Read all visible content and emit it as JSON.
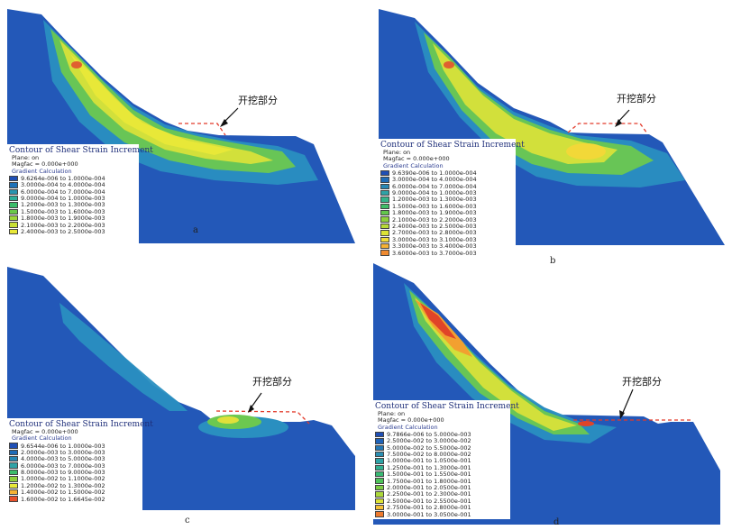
{
  "panels": [
    {
      "id": "a",
      "label": "a",
      "excavation_label": "开挖部分",
      "legend": {
        "title": "Contour of Shear Strain Increment",
        "plane": "Plane: on",
        "magfac": "Magfac =  0.000e+000",
        "subtitle": "Gradient Calculation",
        "entries": [
          {
            "range": "9.6264e-006 to  1.0000e-004",
            "color": "#1f4fb5"
          },
          {
            "range": "3.0000e-004 to  4.0000e-004",
            "color": "#1f72b8"
          },
          {
            "range": "6.0000e-004 to  7.0000e-004",
            "color": "#2a94b0"
          },
          {
            "range": "9.0000e-004 to  1.0000e-003",
            "color": "#2fae9a"
          },
          {
            "range": "1.2000e-003 to  1.3000e-003",
            "color": "#3cbc6a"
          },
          {
            "range": "1.5000e-003 to  1.6000e-003",
            "color": "#6ac84a"
          },
          {
            "range": "1.8000e-003 to  1.9000e-003",
            "color": "#9ed63a"
          },
          {
            "range": "2.1000e-003 to  2.2000e-003",
            "color": "#c9e036"
          },
          {
            "range": "2.4000e-003 to  2.5000e-003",
            "color": "#e8e838"
          }
        ]
      }
    },
    {
      "id": "b",
      "label": "b",
      "excavation_label": "开挖部分",
      "legend": {
        "title": "Contour of Shear Strain Increment",
        "plane": "Plane: on",
        "magfac": "Magfac =  0.000e+000",
        "subtitle": "Gradient Calculation",
        "entries": [
          {
            "range": "9.6390e-006 to  1.0000e-004",
            "color": "#1f4fb5"
          },
          {
            "range": "3.0000e-004 to  4.0000e-004",
            "color": "#1f6cb8"
          },
          {
            "range": "6.0000e-004 to  7.0000e-004",
            "color": "#2888b4"
          },
          {
            "range": "9.0000e-004 to  1.0000e-003",
            "color": "#2ea2a6"
          },
          {
            "range": "1.2000e-003 to  1.3000e-003",
            "color": "#33b48a"
          },
          {
            "range": "1.5000e-003 to  1.6000e-003",
            "color": "#3fbe68"
          },
          {
            "range": "1.8000e-003 to  1.9000e-003",
            "color": "#62c64c"
          },
          {
            "range": "2.1000e-003 to  2.2000e-003",
            "color": "#8ed03c"
          },
          {
            "range": "2.4000e-003 to  2.5000e-003",
            "color": "#b8da36"
          },
          {
            "range": "2.7000e-003 to  2.8000e-003",
            "color": "#dce236"
          },
          {
            "range": "3.0000e-003 to  3.1000e-003",
            "color": "#f2dc38"
          },
          {
            "range": "3.3000e-003 to  3.4000e-003",
            "color": "#f5b234"
          },
          {
            "range": "3.6000e-003 to  3.7000e-003",
            "color": "#ef8a30"
          }
        ]
      }
    },
    {
      "id": "c",
      "label": "c",
      "excavation_label": "开挖部分",
      "legend": {
        "title": "Contour of Shear Strain Increment",
        "plane": "Plane: on",
        "magfac": "Magfac =  0.000e+000",
        "subtitle": "Gradient Calculation",
        "entries": [
          {
            "range": "9.6544e-006 to  1.0000e-003",
            "color": "#1f4fb5"
          },
          {
            "range": "2.0000e-003 to  3.0000e-003",
            "color": "#1f6cb8"
          },
          {
            "range": "4.0000e-003 to  5.0000e-003",
            "color": "#2888b4"
          },
          {
            "range": "6.0000e-003 to  7.0000e-003",
            "color": "#2ea2a6"
          },
          {
            "range": "8.0000e-003 to  9.0000e-003",
            "color": "#3cbc6a"
          },
          {
            "range": "1.0000e-002 to  1.1000e-002",
            "color": "#8ed03c"
          },
          {
            "range": "1.2000e-002 to  1.3000e-002",
            "color": "#e8e838"
          },
          {
            "range": "1.4000e-002 to  1.5000e-002",
            "color": "#f5b234"
          },
          {
            "range": "1.6000e-002 to  1.6645e-002",
            "color": "#e8502a"
          }
        ]
      }
    },
    {
      "id": "d",
      "label": "d",
      "excavation_label": "开挖部分",
      "legend": {
        "title": "Contour of Shear Strain Increment",
        "plane": "Plane: on",
        "magfac": "Magfac =  0.000e+000",
        "subtitle": "Gradient Calculation",
        "entries": [
          {
            "range": "9.7866e-006 to  5.0000e-003",
            "color": "#1f4fb5"
          },
          {
            "range": "2.5000e-002 to  3.0000e-002",
            "color": "#1f62b8"
          },
          {
            "range": "5.0000e-002 to  5.5000e-002",
            "color": "#2478b6"
          },
          {
            "range": "7.5000e-002 to  8.0000e-002",
            "color": "#2a8eb2"
          },
          {
            "range": "1.0000e-001 to  1.0500e-001",
            "color": "#2ea2a6"
          },
          {
            "range": "1.2500e-001 to  1.3000e-001",
            "color": "#31b090"
          },
          {
            "range": "1.5000e-001 to  1.5500e-001",
            "color": "#38ba74"
          },
          {
            "range": "1.7500e-001 to  1.8000e-001",
            "color": "#4ec25a"
          },
          {
            "range": "2.0000e-001 to  2.0500e-001",
            "color": "#7ccc44"
          },
          {
            "range": "2.2500e-001 to  2.3000e-001",
            "color": "#acd83a"
          },
          {
            "range": "2.5000e-001 to  2.5500e-001",
            "color": "#dce236"
          },
          {
            "range": "2.7500e-001 to  2.8000e-001",
            "color": "#f4c036"
          },
          {
            "range": "3.0000e-001 to  3.0500e-001",
            "color": "#ee7a2e"
          }
        ]
      }
    }
  ],
  "colors": {
    "base_blue": "#2358b8",
    "mid_blue": "#2a8fc0",
    "green": "#6cc850",
    "yellow": "#e6e63a",
    "orange": "#f2a030",
    "red": "#e04428",
    "excavation_line": "#e23a2a"
  }
}
